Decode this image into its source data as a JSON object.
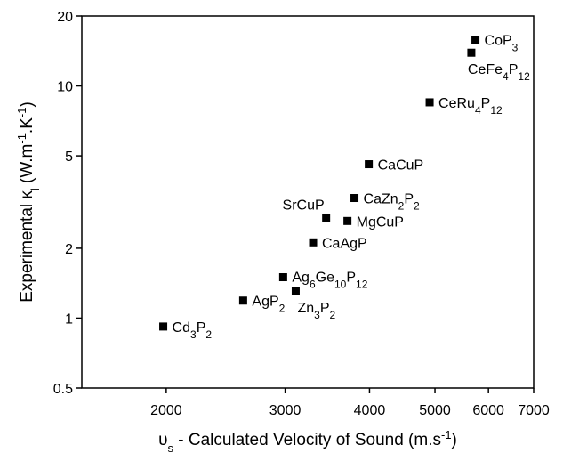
{
  "chart_data": {
    "type": "scatter",
    "xlabel": [
      {
        "text": "υ",
        "style": "normal"
      },
      {
        "text": "s",
        "style": "sub"
      },
      {
        "text": " - Calculated Velocity of Sound (m.s",
        "style": "normal"
      },
      {
        "text": "-1",
        "style": "sup"
      },
      {
        "text": ")",
        "style": "normal"
      }
    ],
    "ylabel": [
      {
        "text": "Experimental κ",
        "style": "normal"
      },
      {
        "text": "l",
        "style": "sub"
      },
      {
        "text": " (W.m",
        "style": "normal"
      },
      {
        "text": "-1",
        "style": "sup"
      },
      {
        "text": ".K",
        "style": "normal"
      },
      {
        "text": "-1",
        "style": "sup"
      },
      {
        "text": ")",
        "style": "normal"
      }
    ],
    "xscale": "log",
    "yscale": "log",
    "xlim": [
      1500,
      7000
    ],
    "ylim": [
      0.5,
      20
    ],
    "xticks": [
      2000,
      3000,
      4000,
      5000,
      6000,
      7000
    ],
    "yticks": [
      0.5,
      1,
      2,
      5,
      10,
      20
    ],
    "color": "#000000",
    "labels": [
      "Cd3P2",
      "AgP2",
      "Ag6Ge10P12",
      "Zn3P2",
      "CaAgP",
      "SrCuP",
      "MgCuP",
      "CaZn2P2",
      "CaCuP",
      "CeRu4P12",
      "CeFe4P12",
      "CoP3"
    ],
    "x": [
      1980,
      2600,
      2980,
      3110,
      3300,
      3450,
      3710,
      3800,
      3990,
      4910,
      5660,
      5740
    ],
    "values": [
      0.92,
      1.19,
      1.5,
      1.31,
      2.12,
      2.71,
      2.62,
      3.29,
      4.6,
      8.5,
      13.9,
      15.7
    ]
  }
}
